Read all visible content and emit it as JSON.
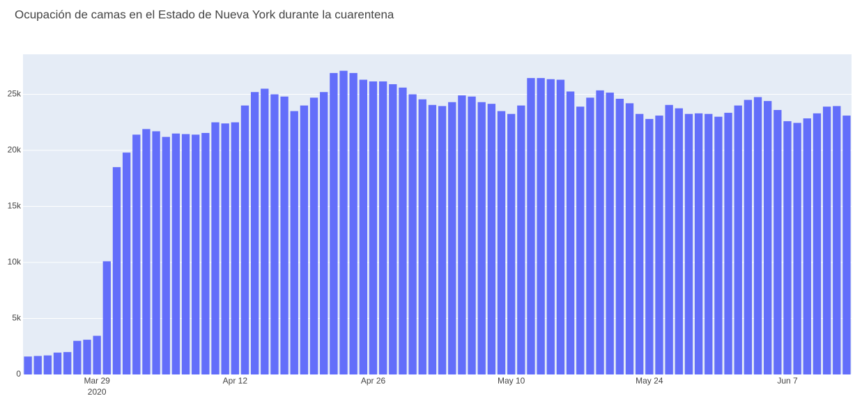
{
  "chart_data": {
    "type": "bar",
    "title": "Ocupación de camas en el Estado de Nueva York durante la cuarentena",
    "color": "#636efa",
    "x": [
      "2020-03-22",
      "2020-03-23",
      "2020-03-24",
      "2020-03-25",
      "2020-03-26",
      "2020-03-27",
      "2020-03-28",
      "2020-03-29",
      "2020-03-30",
      "2020-03-31",
      "2020-04-01",
      "2020-04-02",
      "2020-04-03",
      "2020-04-04",
      "2020-04-05",
      "2020-04-06",
      "2020-04-07",
      "2020-04-08",
      "2020-04-09",
      "2020-04-10",
      "2020-04-11",
      "2020-04-12",
      "2020-04-13",
      "2020-04-14",
      "2020-04-15",
      "2020-04-16",
      "2020-04-17",
      "2020-04-18",
      "2020-04-19",
      "2020-04-20",
      "2020-04-21",
      "2020-04-22",
      "2020-04-23",
      "2020-04-24",
      "2020-04-25",
      "2020-04-26",
      "2020-04-27",
      "2020-04-28",
      "2020-04-29",
      "2020-04-30",
      "2020-05-01",
      "2020-05-02",
      "2020-05-03",
      "2020-05-04",
      "2020-05-05",
      "2020-05-06",
      "2020-05-07",
      "2020-05-08",
      "2020-05-09",
      "2020-05-10",
      "2020-05-11",
      "2020-05-12",
      "2020-05-13",
      "2020-05-14",
      "2020-05-15",
      "2020-05-16",
      "2020-05-17",
      "2020-05-18",
      "2020-05-19",
      "2020-05-20",
      "2020-05-21",
      "2020-05-22",
      "2020-05-23",
      "2020-05-24",
      "2020-05-25",
      "2020-05-26",
      "2020-05-27",
      "2020-05-28",
      "2020-05-29",
      "2020-05-30",
      "2020-05-31",
      "2020-06-01",
      "2020-06-02",
      "2020-06-03",
      "2020-06-04",
      "2020-06-05",
      "2020-06-06",
      "2020-06-07",
      "2020-06-08",
      "2020-06-09",
      "2020-06-10",
      "2020-06-11",
      "2020-06-12",
      "2020-06-13"
    ],
    "values": [
      1600,
      1650,
      1700,
      1950,
      2000,
      3000,
      3100,
      3450,
      10100,
      18500,
      19800,
      21400,
      21900,
      21700,
      21200,
      21500,
      21450,
      21400,
      21550,
      22500,
      22400,
      22500,
      24000,
      25200,
      25500,
      25000,
      24800,
      23500,
      24000,
      24700,
      25200,
      26900,
      27100,
      26900,
      26300,
      26150,
      26150,
      25900,
      25600,
      25000,
      24550,
      24050,
      23950,
      24300,
      24900,
      24800,
      24300,
      24150,
      23500,
      23250,
      24000,
      26450,
      26450,
      26350,
      26300,
      25250,
      23900,
      24700,
      25350,
      25150,
      24600,
      24200,
      23250,
      22800,
      23100,
      24050,
      23750,
      23250,
      23300,
      23250,
      23000,
      23350,
      24000,
      24500,
      24750,
      24400,
      23600,
      22600,
      22450,
      22850,
      23300,
      23900,
      23950,
      23100
    ],
    "xlim": [
      "2020-03-21T12:00:00Z",
      "2020-06-13T12:00:00Z"
    ],
    "xticks": [
      {
        "value": "2020-03-29",
        "label": "Mar 29"
      },
      {
        "value": "2020-04-12",
        "label": "Apr 12"
      },
      {
        "value": "2020-04-26",
        "label": "Apr 26"
      },
      {
        "value": "2020-05-10",
        "label": "May 10"
      },
      {
        "value": "2020-05-24",
        "label": "May 24"
      },
      {
        "value": "2020-06-07",
        "label": "Jun 7"
      }
    ],
    "xtick_year": "2020",
    "ylim": [
      0,
      28570
    ],
    "yticks": [
      0,
      {
        "value": 5000,
        "label": "5k"
      },
      {
        "value": 10000,
        "label": "10k"
      },
      {
        "value": 15000,
        "label": "15k"
      },
      {
        "value": 20000,
        "label": "20k"
      },
      {
        "value": 25000,
        "label": "25k"
      }
    ],
    "grid": true
  }
}
